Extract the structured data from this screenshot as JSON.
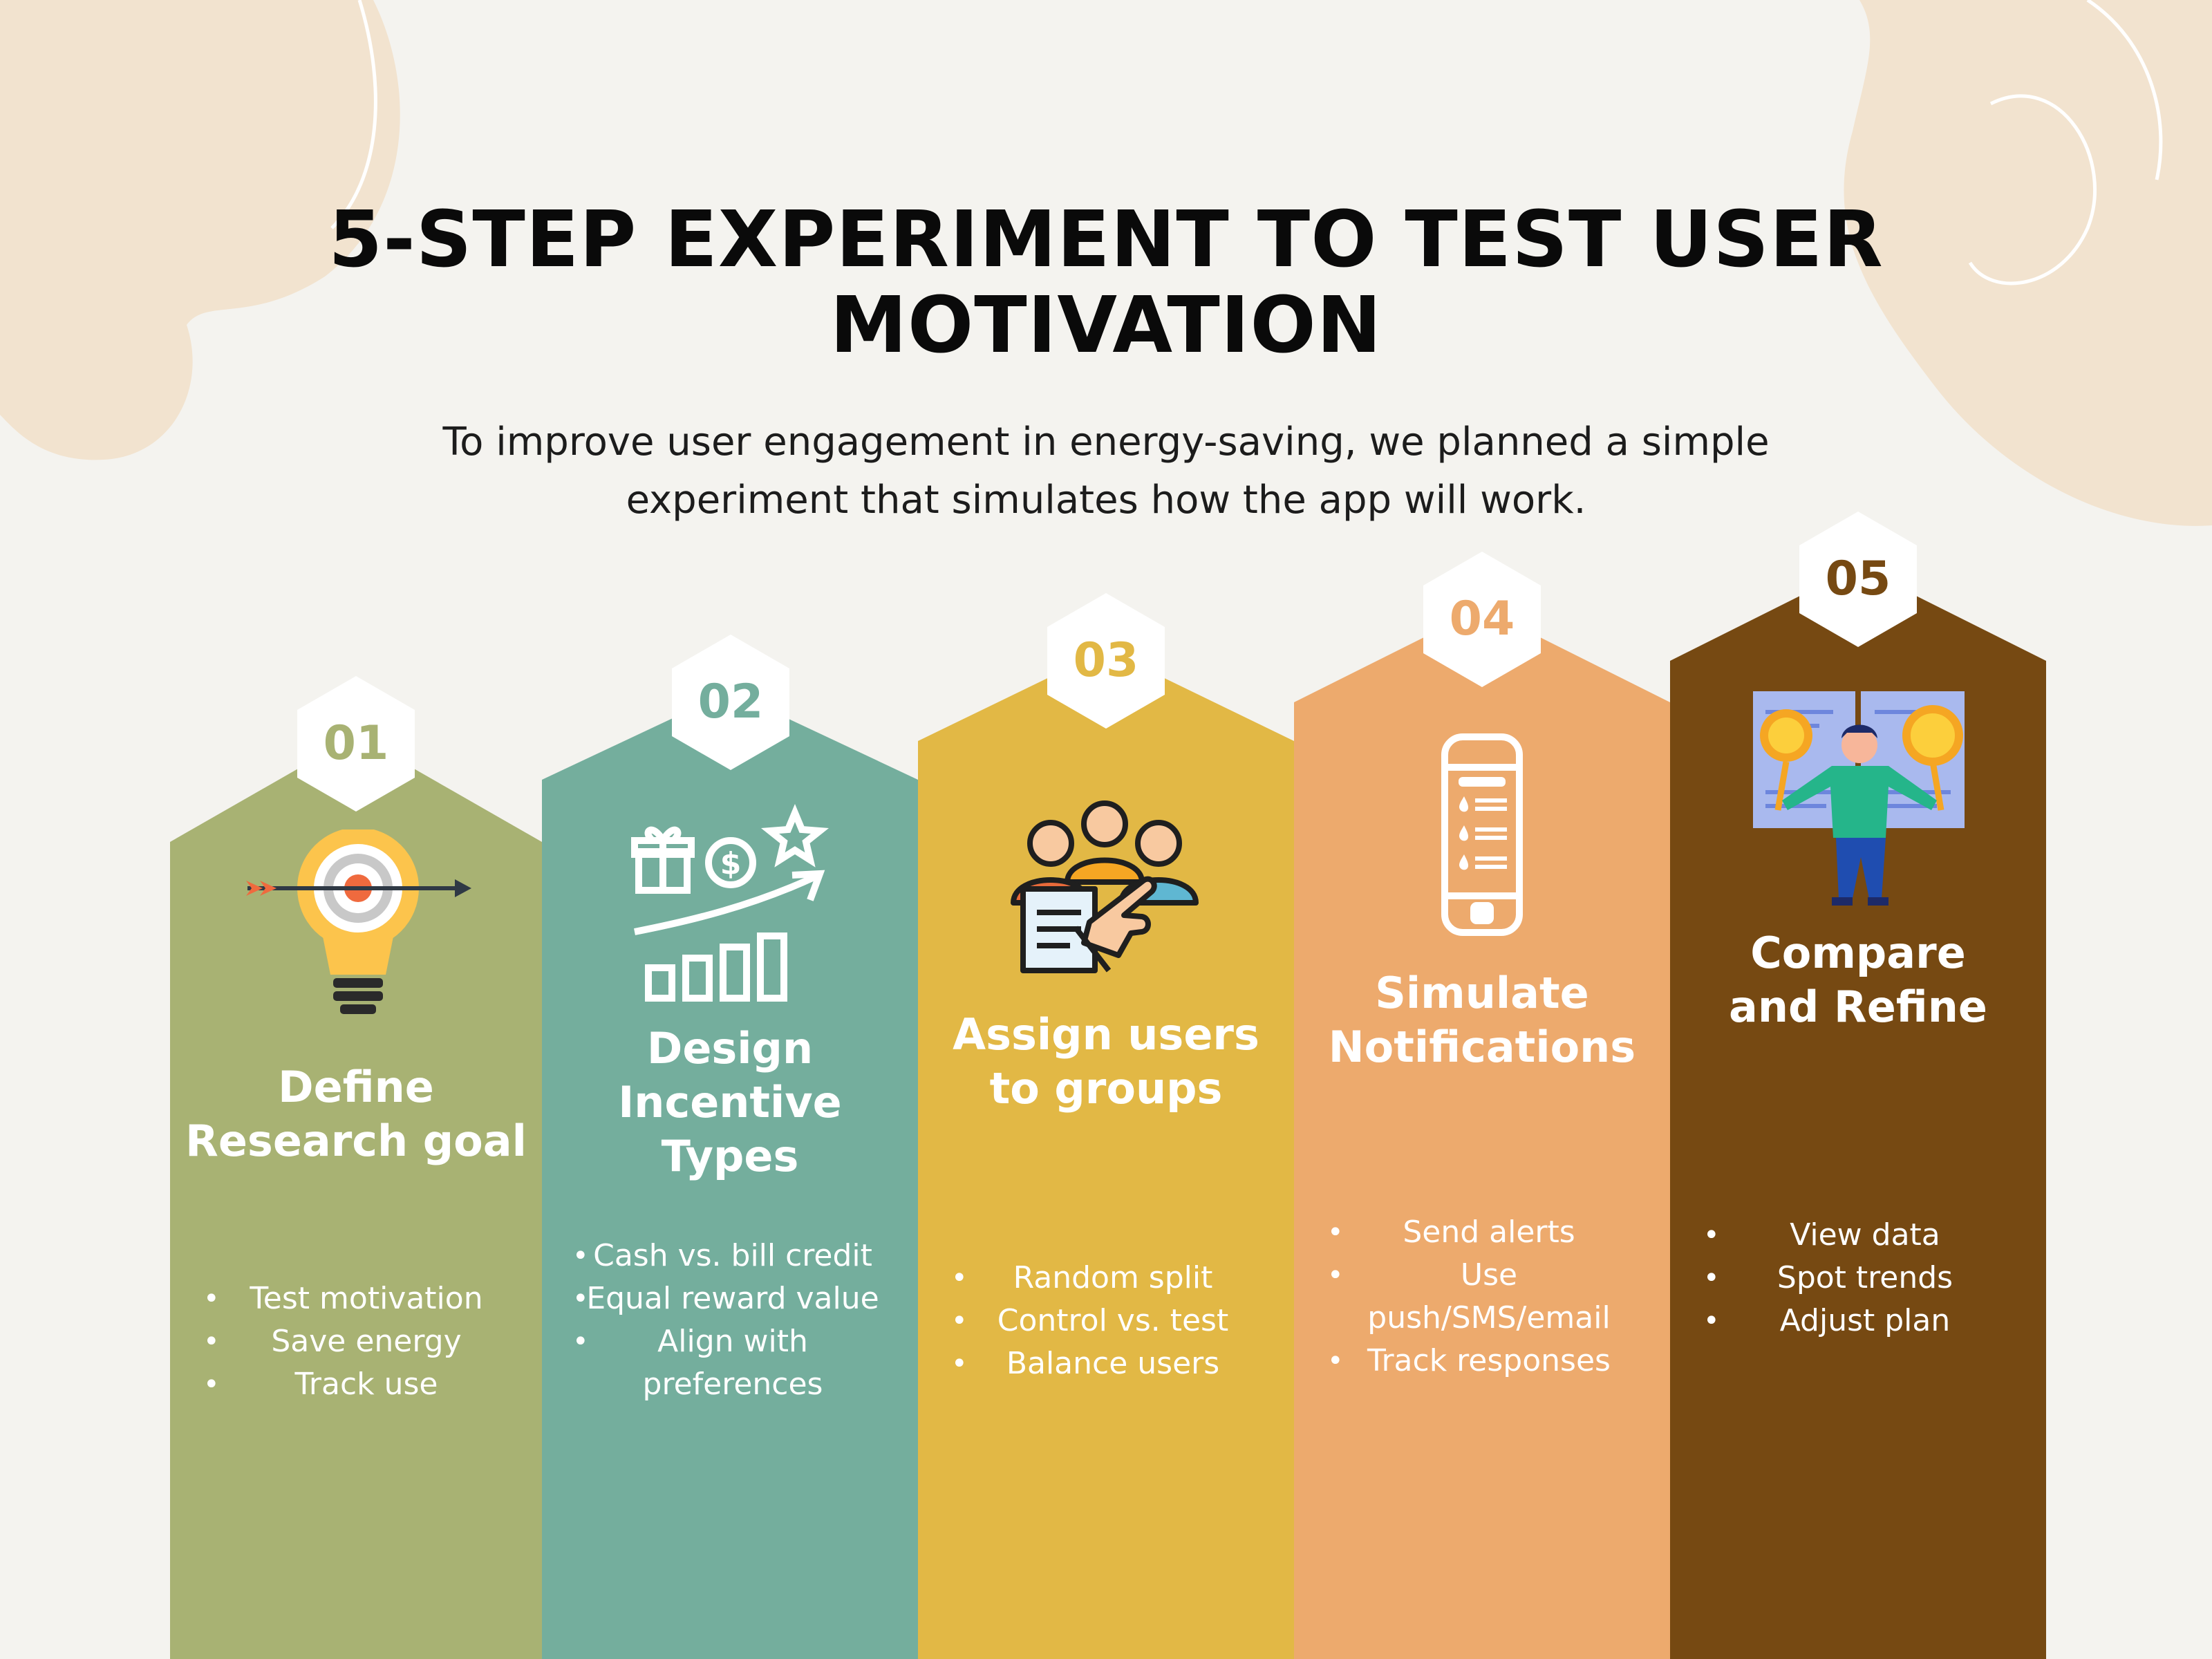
{
  "title": "5-STEP EXPERIMENT TO TEST USER MOTIVATION",
  "subtitle": "To improve user engagement in energy-saving, we planned a simple experiment that simulates how the app will work.",
  "colors": {
    "background": "#f4f3ef",
    "blob": "#f2e3cf",
    "step1": "#a8b273",
    "step2": "#74ae9d",
    "step3": "#e2b845",
    "step4": "#edaa6d",
    "step5": "#764912"
  },
  "steps": [
    {
      "number": "01",
      "icon": "lightbulb-target-icon",
      "title": "Define Research goal",
      "bullets": [
        "Test motivation",
        "Save energy",
        "Track use"
      ]
    },
    {
      "number": "02",
      "icon": "growth-rewards-icon",
      "title": "Design Incentive Types",
      "bullets": [
        "Cash vs. bill credit",
        "Equal reward value",
        "Align with preferences"
      ]
    },
    {
      "number": "03",
      "icon": "user-group-select-icon",
      "title": "Assign users to groups",
      "bullets": [
        "Random split",
        "Control vs. test",
        "Balance users"
      ]
    },
    {
      "number": "04",
      "icon": "smartphone-notification-icon",
      "title": "Simulate Notifications",
      "bullets": [
        "Send alerts",
        "Use push/SMS/email",
        "Track responses"
      ]
    },
    {
      "number": "05",
      "icon": "person-comparing-charts-icon",
      "title": "Compare and Refine",
      "bullets": [
        "View data",
        "Spot trends",
        "Adjust plan"
      ]
    }
  ]
}
